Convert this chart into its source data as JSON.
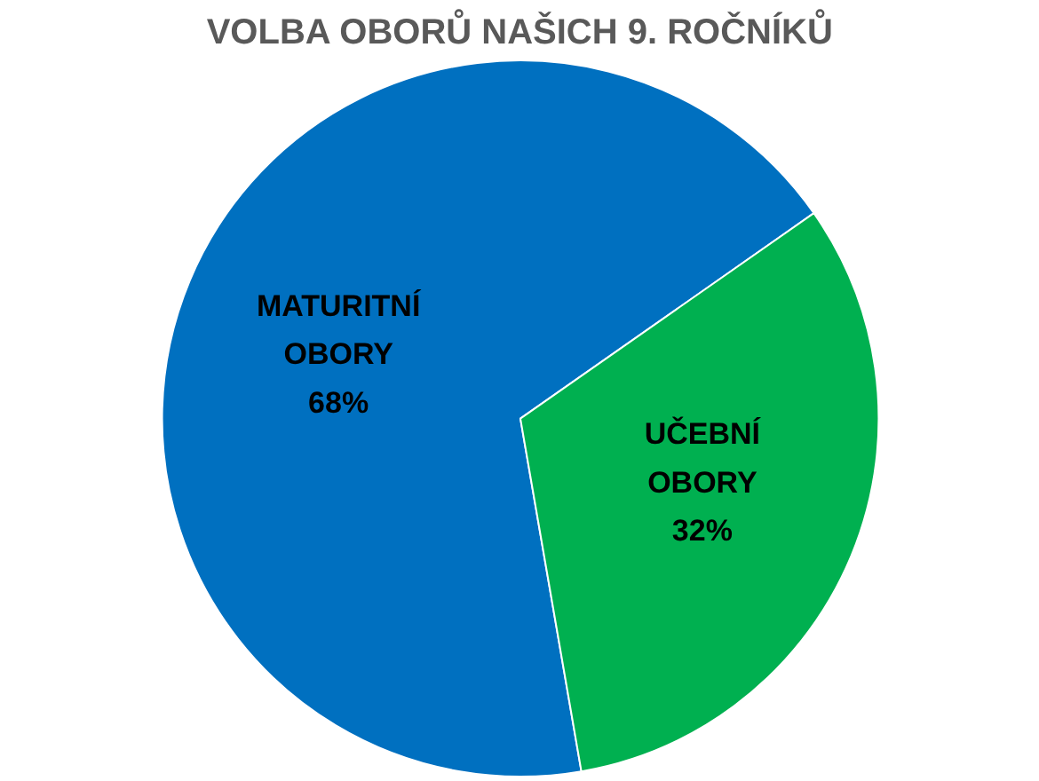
{
  "chart_data": {
    "type": "pie",
    "title": "VOLBA OBORŮ NAŠICH 9. ROČNÍKŮ",
    "categories": [
      "MATURITNÍ OBORY",
      "UČEBNÍ OBORY"
    ],
    "values": [
      68,
      32
    ],
    "colors": [
      "#0070c0",
      "#00b050"
    ],
    "value_labels": [
      "68%",
      "32%"
    ],
    "legend": false
  }
}
